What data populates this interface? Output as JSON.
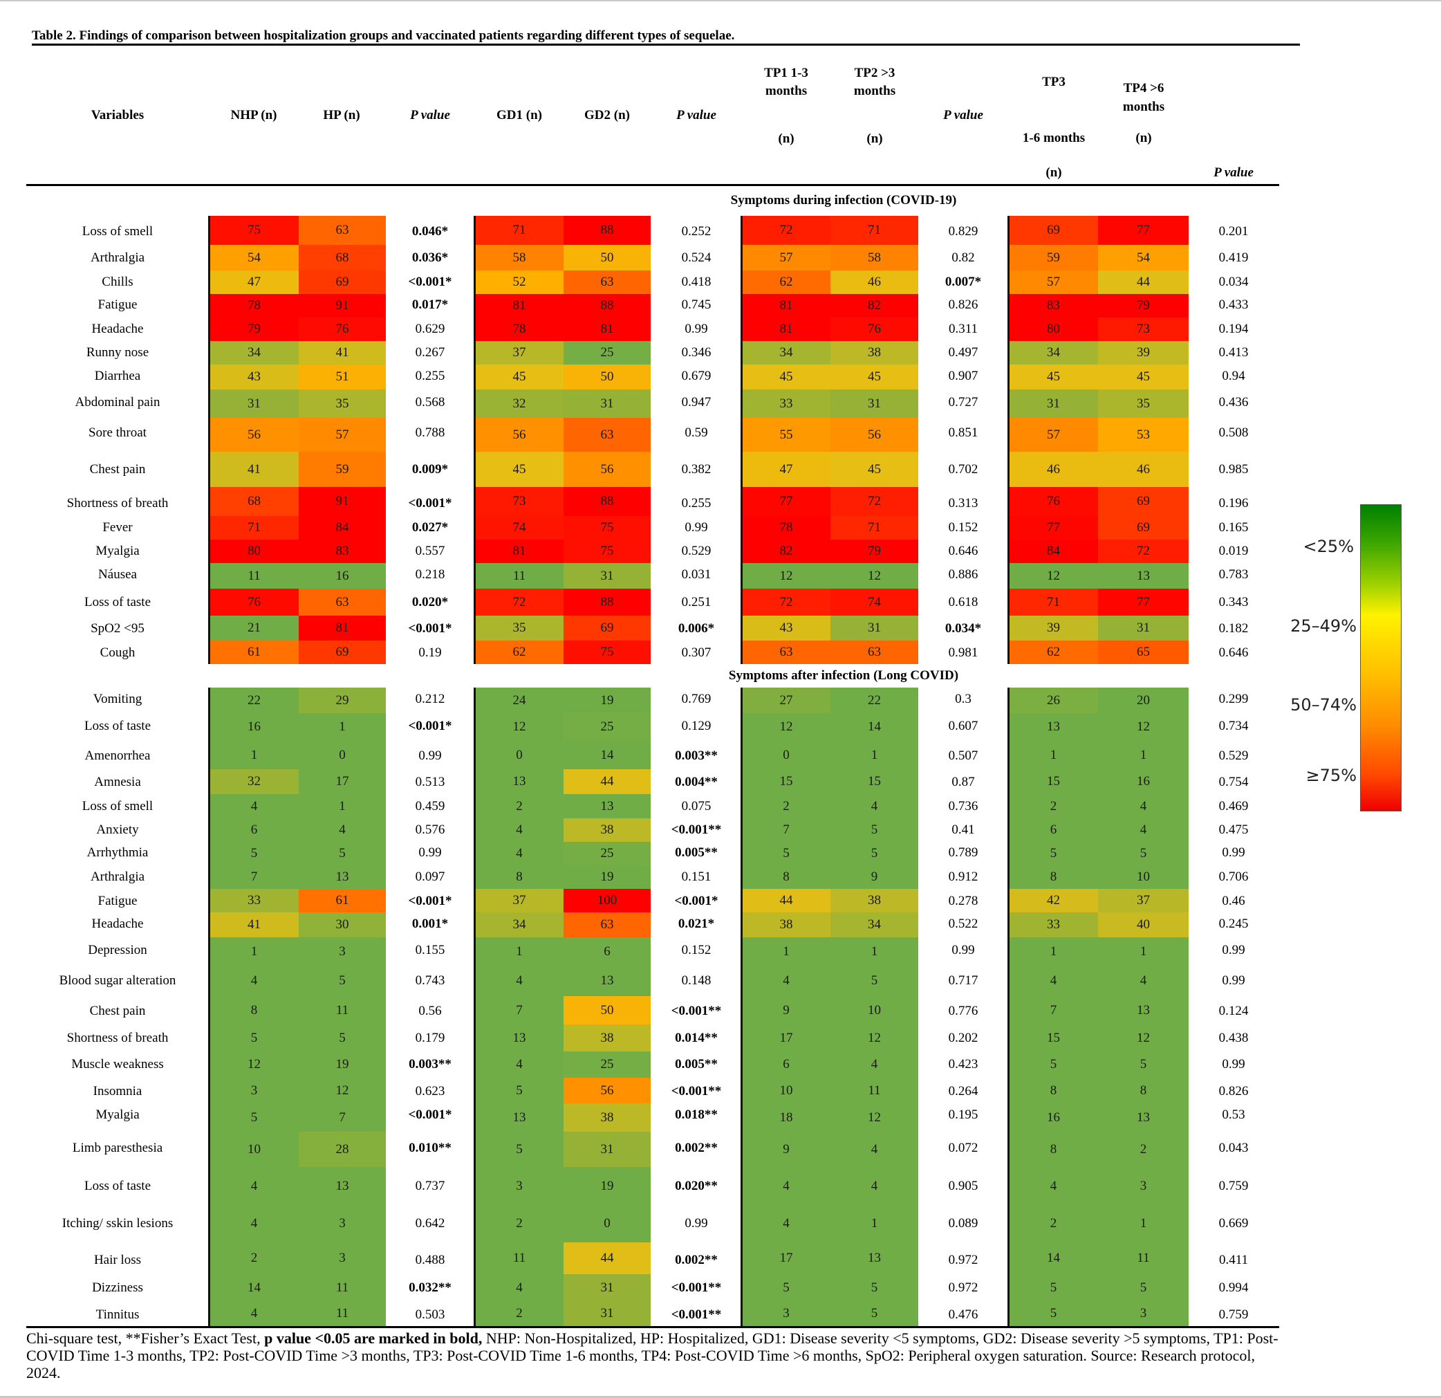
{
  "title": "Table 2. Findings of comparison between hospitalization groups and vaccinated patients regarding different types of sequelae.",
  "headers": {
    "variables": "Variables",
    "nhp": "NHP (n)",
    "hp": "HP (n)",
    "p1": "P value",
    "gd1": "GD1 (n)",
    "gd2": "GD2 (n)",
    "p2": "P value",
    "tp1_line1": "TP1 1-3",
    "tp1_line2": "months",
    "tp1_line3": "(n)",
    "tp2_line1": "TP2 >3",
    "tp2_line2": "months",
    "tp2_line3": "(n)",
    "p3": "P value",
    "tp3_line1": "TP3",
    "tp3_line2": "1-6 months",
    "tp3_line3": "(n)",
    "tp4_line1": "TP4 >6",
    "tp4_line2": "months",
    "tp4_line3": "(n)",
    "p4": "P value"
  },
  "sections": [
    {
      "title": "Symptoms during infection (COVID-19)",
      "rows": [
        {
          "variable": "Loss of smell",
          "nhp": 75,
          "hp": 63,
          "p1": "0.046*",
          "gd1": 71,
          "gd2": 88,
          "p2": "0.252",
          "tp1": 72,
          "tp2": 71,
          "p3": "0.829",
          "tp3": 69,
          "tp4": 77,
          "p4": "0.201"
        },
        {
          "variable": "Arthralgia",
          "nhp": 54,
          "hp": 68,
          "p1": "0.036*",
          "gd1": 58,
          "gd2": 50,
          "p2": "0.524",
          "tp1": 57,
          "tp2": 58,
          "p3": "0.82",
          "tp3": 59,
          "tp4": 54,
          "p4": "0.419"
        },
        {
          "variable": "Chills",
          "nhp": 47,
          "hp": 69,
          "p1": "<0.001*",
          "gd1": 52,
          "gd2": 63,
          "p2": "0.418",
          "tp1": 62,
          "tp2": 46,
          "p3": "0.007*",
          "tp3": 57,
          "tp4": 44,
          "p4": "0.034"
        },
        {
          "variable": "Fatigue",
          "nhp": 78,
          "hp": 91,
          "p1": "0.017*",
          "gd1": 81,
          "gd2": 88,
          "p2": "0.745",
          "tp1": 81,
          "tp2": 82,
          "p3": "0.826",
          "tp3": 83,
          "tp4": 79,
          "p4": "0.433"
        },
        {
          "variable": "Headache",
          "nhp": 79,
          "hp": 76,
          "p1": "0.629",
          "gd1": 78,
          "gd2": 81,
          "p2": "0.99",
          "tp1": 81,
          "tp2": 76,
          "p3": "0.311",
          "tp3": 80,
          "tp4": 73,
          "p4": "0.194"
        },
        {
          "variable": "Runny nose",
          "nhp": 34,
          "hp": 41,
          "p1": "0.267",
          "gd1": 37,
          "gd2": 25,
          "p2": "0.346",
          "tp1": 34,
          "tp2": 38,
          "p3": "0.497",
          "tp3": 34,
          "tp4": 39,
          "p4": "0.413"
        },
        {
          "variable": "Diarrhea",
          "nhp": 43,
          "hp": 51,
          "p1": "0.255",
          "gd1": 45,
          "gd2": 50,
          "p2": "0.679",
          "tp1": 45,
          "tp2": 45,
          "p3": "0.907",
          "tp3": 45,
          "tp4": 45,
          "p4": "0.94"
        },
        {
          "variable": "Abdominal pain",
          "nhp": 31,
          "hp": 35,
          "p1": "0.568",
          "gd1": 32,
          "gd2": 31,
          "p2": "0.947",
          "tp1": 33,
          "tp2": 31,
          "p3": "0.727",
          "tp3": 31,
          "tp4": 35,
          "p4": "0.436"
        },
        {
          "variable": "Sore throat",
          "nhp": 56,
          "hp": 57,
          "p1": "0.788",
          "gd1": 56,
          "gd2": 63,
          "p2": "0.59",
          "tp1": 55,
          "tp2": 56,
          "p3": "0.851",
          "tp3": 57,
          "tp4": 53,
          "p4": "0.508"
        },
        {
          "variable": "Chest pain",
          "nhp": 41,
          "hp": 59,
          "p1": "0.009*",
          "gd1": 45,
          "gd2": 56,
          "p2": "0.382",
          "tp1": 47,
          "tp2": 45,
          "p3": "0.702",
          "tp3": 46,
          "tp4": 46,
          "p4": "0.985"
        },
        {
          "variable": "Shortness of breath",
          "nhp": 68,
          "hp": 91,
          "p1": "<0.001*",
          "gd1": 73,
          "gd2": 88,
          "p2": "0.255",
          "tp1": 77,
          "tp2": 72,
          "p3": "0.313",
          "tp3": 76,
          "tp4": 69,
          "p4": "0.196"
        },
        {
          "variable": "Fever",
          "nhp": 71,
          "hp": 84,
          "p1": "0.027*",
          "gd1": 74,
          "gd2": 75,
          "p2": "0.99",
          "tp1": 78,
          "tp2": 71,
          "p3": "0.152",
          "tp3": 77,
          "tp4": 69,
          "p4": "0.165"
        },
        {
          "variable": "Myalgia",
          "nhp": 80,
          "hp": 83,
          "p1": "0.557",
          "gd1": 81,
          "gd2": 75,
          "p2": "0.529",
          "tp1": 82,
          "tp2": 79,
          "p3": "0.646",
          "tp3": 84,
          "tp4": 72,
          "p4": "0.019"
        },
        {
          "variable": "Náusea",
          "nhp": 11,
          "hp": 16,
          "p1": "0.218",
          "gd1": 11,
          "gd2": 31,
          "p2": "0.031",
          "tp1": 12,
          "tp2": 12,
          "p3": "0.886",
          "tp3": 12,
          "tp4": 13,
          "p4": "0.783"
        },
        {
          "variable": "Loss of taste",
          "nhp": 76,
          "hp": 63,
          "p1": "0.020*",
          "gd1": 72,
          "gd2": 88,
          "p2": "0.251",
          "tp1": 72,
          "tp2": 74,
          "p3": "0.618",
          "tp3": 71,
          "tp4": 77,
          "p4": "0.343"
        },
        {
          "variable": "SpO2 <95",
          "nhp": 21,
          "hp": 81,
          "p1": "<0.001*",
          "gd1": 35,
          "gd2": 69,
          "p2": "0.006*",
          "tp1": 43,
          "tp2": 31,
          "p3": "0.034*",
          "tp3": 39,
          "tp4": 31,
          "p4": "0.182"
        },
        {
          "variable": "Cough",
          "nhp": 61,
          "hp": 69,
          "p1": "0.19",
          "gd1": 62,
          "gd2": 75,
          "p2": "0.307",
          "tp1": 63,
          "tp2": 63,
          "p3": "0.981",
          "tp3": 62,
          "tp4": 65,
          "p4": "0.646"
        }
      ]
    },
    {
      "title": "Symptoms after infection (Long COVID)",
      "rows": [
        {
          "variable": "Vomiting",
          "nhp": 22,
          "hp": 29,
          "p1": "0.212",
          "gd1": 24,
          "gd2": 19,
          "p2": "0.769",
          "tp1": 27,
          "tp2": 22,
          "p3": "0.3",
          "tp3": 26,
          "tp4": 20,
          "p4": "0.299"
        },
        {
          "variable": "Loss of taste",
          "nhp": 16,
          "hp": 1,
          "p1": "<0.001*",
          "gd1": 12,
          "gd2": 25,
          "p2": "0.129",
          "tp1": 12,
          "tp2": 14,
          "p3": "0.607",
          "tp3": 13,
          "tp4": 12,
          "p4": "0.734"
        },
        {
          "variable": "Amenorrhea",
          "nhp": 1,
          "hp": 0,
          "p1": "0.99",
          "gd1": 0,
          "gd2": 14,
          "p2": "0.003**",
          "tp1": 0,
          "tp2": 1,
          "p3": "0.507",
          "tp3": 1,
          "tp4": 1,
          "p4": "0.529"
        },
        {
          "variable": "Amnesia",
          "nhp": 32,
          "hp": 17,
          "p1": "0.513",
          "gd1": 13,
          "gd2": 44,
          "p2": "0.004**",
          "tp1": 15,
          "tp2": 15,
          "p3": "0.87",
          "tp3": 15,
          "tp4": 16,
          "p4": "0.754"
        },
        {
          "variable": "Loss of smell",
          "nhp": 4,
          "hp": 1,
          "p1": "0.459",
          "gd1": 2,
          "gd2": 13,
          "p2": "0.075",
          "tp1": 2,
          "tp2": 4,
          "p3": "0.736",
          "tp3": 2,
          "tp4": 4,
          "p4": "0.469"
        },
        {
          "variable": "Anxiety",
          "nhp": 6,
          "hp": 4,
          "p1": "0.576",
          "gd1": 4,
          "gd2": 38,
          "p2": "<0.001**",
          "tp1": 7,
          "tp2": 5,
          "p3": "0.41",
          "tp3": 6,
          "tp4": 4,
          "p4": "0.475"
        },
        {
          "variable": "Arrhythmia",
          "nhp": 5,
          "hp": 5,
          "p1": "0.99",
          "gd1": 4,
          "gd2": 25,
          "p2": "0.005**",
          "tp1": 5,
          "tp2": 5,
          "p3": "0.789",
          "tp3": 5,
          "tp4": 5,
          "p4": "0.99"
        },
        {
          "variable": "Arthralgia",
          "nhp": 7,
          "hp": 13,
          "p1": "0.097",
          "gd1": 8,
          "gd2": 19,
          "p2": "0.151",
          "tp1": 8,
          "tp2": 9,
          "p3": "0.912",
          "tp3": 8,
          "tp4": 10,
          "p4": "0.706"
        },
        {
          "variable": "Fatigue",
          "nhp": 33,
          "hp": 61,
          "p1": "<0.001*",
          "gd1": 37,
          "gd2": 100,
          "p2": "<0.001*",
          "tp1": 44,
          "tp2": 38,
          "p3": "0.278",
          "tp3": 42,
          "tp4": 37,
          "p4": "0.46"
        },
        {
          "variable": "Headache",
          "nhp": 41,
          "hp": 30,
          "p1": "0.001*",
          "gd1": 34,
          "gd2": 63,
          "p2": "0.021*",
          "tp1": 38,
          "tp2": 34,
          "p3": "0.522",
          "tp3": 33,
          "tp4": 40,
          "p4": "0.245"
        },
        {
          "variable": "Depression",
          "nhp": 1,
          "hp": 3,
          "p1": "0.155",
          "gd1": 1,
          "gd2": 6,
          "p2": "0.152",
          "tp1": 1,
          "tp2": 1,
          "p3": "0.99",
          "tp3": 1,
          "tp4": 1,
          "p4": "0.99"
        },
        {
          "variable": "Blood sugar alteration",
          "nhp": 4,
          "hp": 5,
          "p1": "0.743",
          "gd1": 4,
          "gd2": 13,
          "p2": "0.148",
          "tp1": 4,
          "tp2": 5,
          "p3": "0.717",
          "tp3": 4,
          "tp4": 4,
          "p4": "0.99"
        },
        {
          "variable": "Chest pain",
          "nhp": 8,
          "hp": 11,
          "p1": "0.56",
          "gd1": 7,
          "gd2": 50,
          "p2": "<0.001**",
          "tp1": 9,
          "tp2": 10,
          "p3": "0.776",
          "tp3": 7,
          "tp4": 13,
          "p4": "0.124"
        },
        {
          "variable": "Shortness of breath",
          "nhp": 5,
          "hp": 5,
          "p1": "0.179",
          "gd1": 13,
          "gd2": 38,
          "p2": "0.014**",
          "tp1": 17,
          "tp2": 12,
          "p3": "0.202",
          "tp3": 15,
          "tp4": 12,
          "p4": "0.438"
        },
        {
          "variable": "Muscle weakness",
          "nhp": 12,
          "hp": 19,
          "p1": "0.003**",
          "gd1": 4,
          "gd2": 25,
          "p2": "0.005**",
          "tp1": 6,
          "tp2": 4,
          "p3": "0.423",
          "tp3": 5,
          "tp4": 5,
          "p4": "0.99"
        },
        {
          "variable": "Insomnia",
          "nhp": 3,
          "hp": 12,
          "p1": "0.623",
          "gd1": 5,
          "gd2": 56,
          "p2": "<0.001**",
          "tp1": 10,
          "tp2": 11,
          "p3": "0.264",
          "tp3": 8,
          "tp4": 8,
          "p4": "0.826"
        },
        {
          "variable": "Myalgia",
          "nhp": 5,
          "hp": 7,
          "p1": "<0.001*",
          "gd1": 13,
          "gd2": 38,
          "p2": "0.018**",
          "tp1": 18,
          "tp2": 12,
          "p3": "0.195",
          "tp3": 16,
          "tp4": 13,
          "p4": "0.53"
        },
        {
          "variable": "Limb paresthesia",
          "nhp": 10,
          "hp": 28,
          "p1": "0.010**",
          "gd1": 5,
          "gd2": 31,
          "p2": "0.002**",
          "tp1": 9,
          "tp2": 4,
          "p3": "0.072",
          "tp3": 8,
          "tp4": 2,
          "p4": "0.043"
        },
        {
          "variable": "Loss of taste",
          "nhp": 4,
          "hp": 13,
          "p1": "0.737",
          "gd1": 3,
          "gd2": 19,
          "p2": "0.020**",
          "tp1": 4,
          "tp2": 4,
          "p3": "0.905",
          "tp3": 4,
          "tp4": 3,
          "p4": "0.759"
        },
        {
          "variable": "Itching/ sskin lesions",
          "nhp": 4,
          "hp": 3,
          "p1": "0.642",
          "gd1": 2,
          "gd2": 0,
          "p2": "0.99",
          "tp1": 4,
          "tp2": 1,
          "p3": "0.089",
          "tp3": 2,
          "tp4": 1,
          "p4": "0.669"
        },
        {
          "variable": "Hair loss",
          "nhp": 2,
          "hp": 3,
          "p1": "0.488",
          "gd1": 11,
          "gd2": 44,
          "p2": "0.002**",
          "tp1": 17,
          "tp2": 13,
          "p3": "0.972",
          "tp3": 14,
          "tp4": 11,
          "p4": "0.411"
        },
        {
          "variable": "Dizziness",
          "nhp": 14,
          "hp": 11,
          "p1": "0.032**",
          "gd1": 4,
          "gd2": 31,
          "p2": "<0.001**",
          "tp1": 5,
          "tp2": 5,
          "p3": "0.972",
          "tp3": 5,
          "tp4": 5,
          "p4": "0.994"
        },
        {
          "variable": "Tinnitus",
          "nhp": 4,
          "hp": 11,
          "p1": "0.503",
          "gd1": 2,
          "gd2": 31,
          "p2": "<0.001**",
          "tp1": 3,
          "tp2": 5,
          "p3": "0.476",
          "tp3": 5,
          "tp4": 3,
          "p4": "0.759"
        }
      ]
    }
  ],
  "bold_pvalues": {
    "p1": [
      "0.046*",
      "0.036*",
      "<0.001*",
      "0.017*",
      "0.009*",
      "<0.001*",
      "0.027*",
      "0.020*",
      "<0.001*",
      "<0.001*",
      "<0.001*",
      "0.001*",
      "0.003**",
      "<0.001*",
      "0.010**",
      "0.032**"
    ],
    "note": "p value <0.05 marked in bold"
  },
  "legend": {
    "labels": [
      "<25%",
      "25–49%",
      "50–74%",
      "≥75%"
    ],
    "colors": [
      "#008000",
      "#fff200",
      "#ff8c00",
      "#f00000"
    ]
  },
  "footnote": {
    "pre": "Chi-square test, **Fisher’s Exact Test, ",
    "bold": "p value <0.05 are marked in bold,",
    "post": " NHP: Non-Hospitalized, HP: Hospitalized, GD1: Disease severity <5 symptoms, GD2: Disease severity >5 symptoms, TP1: Post-COVID Time 1-3 months, TP2: Post-COVID Time >3 months, TP3: Post-COVID Time 1-6 months, TP4: Post-COVID Time >6 months, SpO2: Peripheral oxygen saturation. Source: Research protocol, 2024."
  }
}
